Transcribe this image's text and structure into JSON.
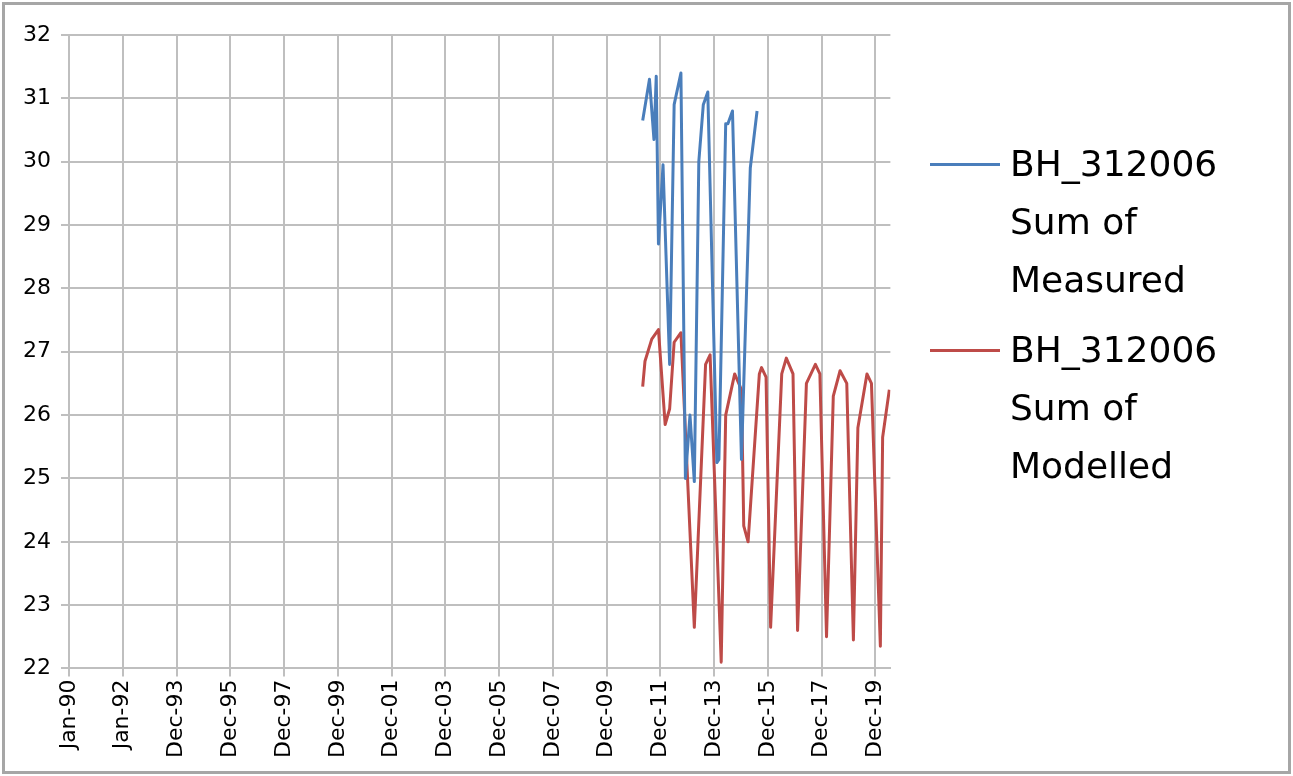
{
  "chart_data": {
    "type": "line",
    "x": [
      "2011-05",
      "2011-08",
      "2011-10",
      "2011-11",
      "2011-12",
      "2012-02",
      "2012-05",
      "2012-07",
      "2012-10",
      "2012-12",
      "2013-02",
      "2013-04",
      "2013-06",
      "2013-08",
      "2013-10",
      "2014-02",
      "2014-03",
      "2014-06",
      "2014-07",
      "2014-09",
      "2015-01",
      "2015-05",
      "2015-08"
    ],
    "series": [
      {
        "name": "BH_312006 Sum of Measured",
        "color": "#4a7ebb",
        "values": [
          30.65,
          31.3,
          30.35,
          31.35,
          28.7,
          29.95,
          26.8,
          30.9,
          31.4,
          25.0,
          26.0,
          24.95,
          30.0,
          30.9,
          31.1,
          25.25,
          25.3,
          30.6,
          30.6,
          30.8,
          25.3,
          29.9,
          30.8
        ]
      },
      {
        "name": "BH_312006 Sum of Modelled",
        "color": "#be4b48",
        "x": [
          "2011-05",
          "2011-06",
          "2011-09",
          "2011-12",
          "2012-03",
          "2012-05",
          "2012-07",
          "2012-10",
          "2013-04",
          "2013-09",
          "2013-11",
          "2014-04",
          "2014-06",
          "2014-10",
          "2015-01",
          "2015-02",
          "2015-04",
          "2015-09",
          "2015-10",
          "2015-12",
          "2016-02",
          "2016-07",
          "2016-09",
          "2016-12",
          "2017-02",
          "2017-06",
          "2017-10",
          "2017-12",
          "2018-03",
          "2018-06",
          "2018-09",
          "2018-12",
          "2019-03",
          "2019-05",
          "2019-09",
          "2019-11",
          "2020-03",
          "2020-04",
          "2020-07"
        ],
        "values": [
          26.45,
          26.85,
          27.2,
          27.35,
          25.85,
          26.1,
          27.15,
          27.3,
          22.65,
          26.8,
          26.95,
          22.1,
          26.0,
          26.65,
          26.4,
          24.25,
          24.0,
          26.65,
          26.75,
          26.6,
          22.65,
          26.65,
          26.9,
          26.65,
          22.6,
          26.5,
          26.8,
          26.65,
          22.5,
          26.3,
          26.7,
          26.5,
          22.45,
          25.8,
          26.65,
          26.5,
          22.35,
          25.65,
          26.4
        ]
      }
    ],
    "xlim": [
      "1990-01-01",
      "2020-07-15"
    ],
    "xticks": [
      {
        "value": "1990-01-01",
        "label": "Jan-90"
      },
      {
        "value": "1992-01-01",
        "label": "Jan-92"
      },
      {
        "value": "1993-12-31",
        "label": "Dec-93"
      },
      {
        "value": "1995-12-31",
        "label": "Dec-95"
      },
      {
        "value": "1997-12-30",
        "label": "Dec-97"
      },
      {
        "value": "1999-12-30",
        "label": "Dec-99"
      },
      {
        "value": "2001-12-29",
        "label": "Dec-01"
      },
      {
        "value": "2003-12-29",
        "label": "Dec-03"
      },
      {
        "value": "2005-12-28",
        "label": "Dec-05"
      },
      {
        "value": "2007-12-28",
        "label": "Dec-07"
      },
      {
        "value": "2009-12-27",
        "label": "Dec-09"
      },
      {
        "value": "2011-12-27",
        "label": "Dec-11"
      },
      {
        "value": "2013-12-26",
        "label": "Dec-13"
      },
      {
        "value": "2015-12-26",
        "label": "Dec-15"
      },
      {
        "value": "2017-12-25",
        "label": "Dec-17"
      },
      {
        "value": "2019-12-25",
        "label": "Dec-19"
      }
    ],
    "ylim": [
      22,
      32
    ],
    "yticks": [
      22,
      23,
      24,
      25,
      26,
      27,
      28,
      29,
      30,
      31,
      32
    ],
    "grid": true,
    "legend": "right",
    "marker": "none",
    "line_style": "solid"
  }
}
